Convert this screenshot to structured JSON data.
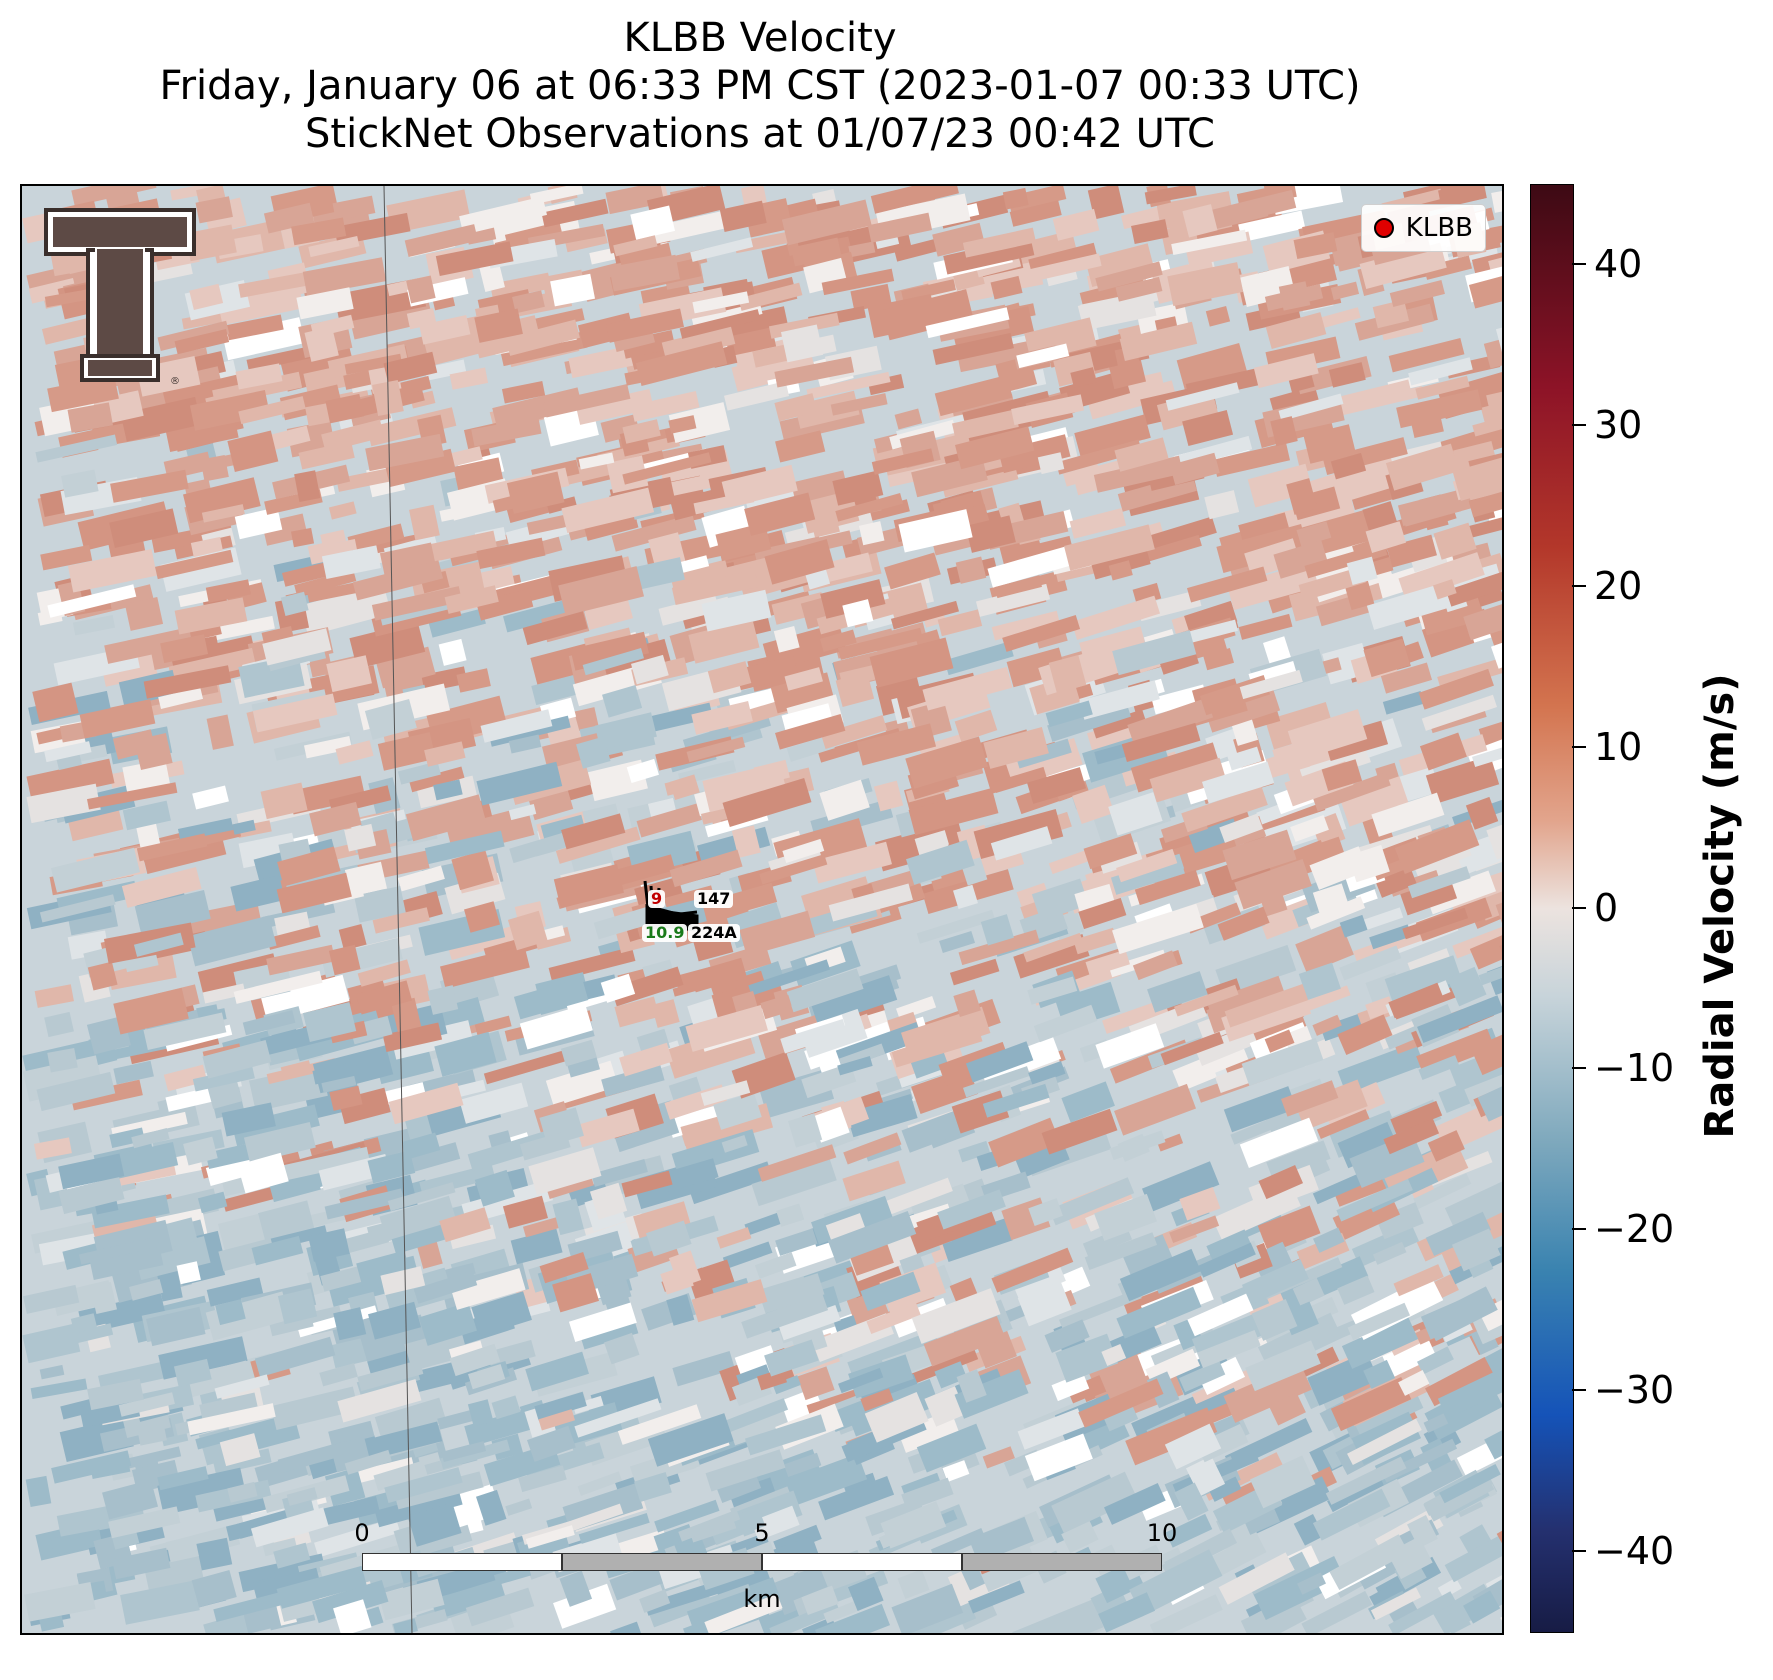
{
  "title": {
    "line1": "KLBB Velocity",
    "line2": "Friday, January 06 at 06:33 PM CST (2023-01-07 00:33 UTC)",
    "line3": "StickNet Observations at 01/07/23 00:42 UTC"
  },
  "legend": {
    "label": "KLBB",
    "marker_color": "#e00000"
  },
  "logo": {
    "icon": "texas-tech-double-t-logo"
  },
  "observations": [
    {
      "station": "147",
      "value": "9",
      "value_color": "#c00000"
    },
    {
      "station": "224A",
      "value": "10.9",
      "value_color": "#1a7a1a"
    }
  ],
  "scalebar": {
    "ticks": [
      "0",
      "5",
      "10"
    ],
    "unit": "km"
  },
  "colorbar": {
    "label": "Radial Velocity (m/s)",
    "range": [
      -45,
      45
    ],
    "ticks": [
      "40",
      "30",
      "20",
      "10",
      "0",
      "−10",
      "−20",
      "−30",
      "−40"
    ],
    "tick_values": [
      40,
      30,
      20,
      10,
      0,
      -10,
      -20,
      -30,
      -40
    ],
    "colors": {
      "positive_max": "#3d0a14",
      "positive_light": "#d9a08f",
      "zero": "#ece3df",
      "negative_light": "#a8c0cc",
      "negative_max": "#171c45"
    }
  }
}
